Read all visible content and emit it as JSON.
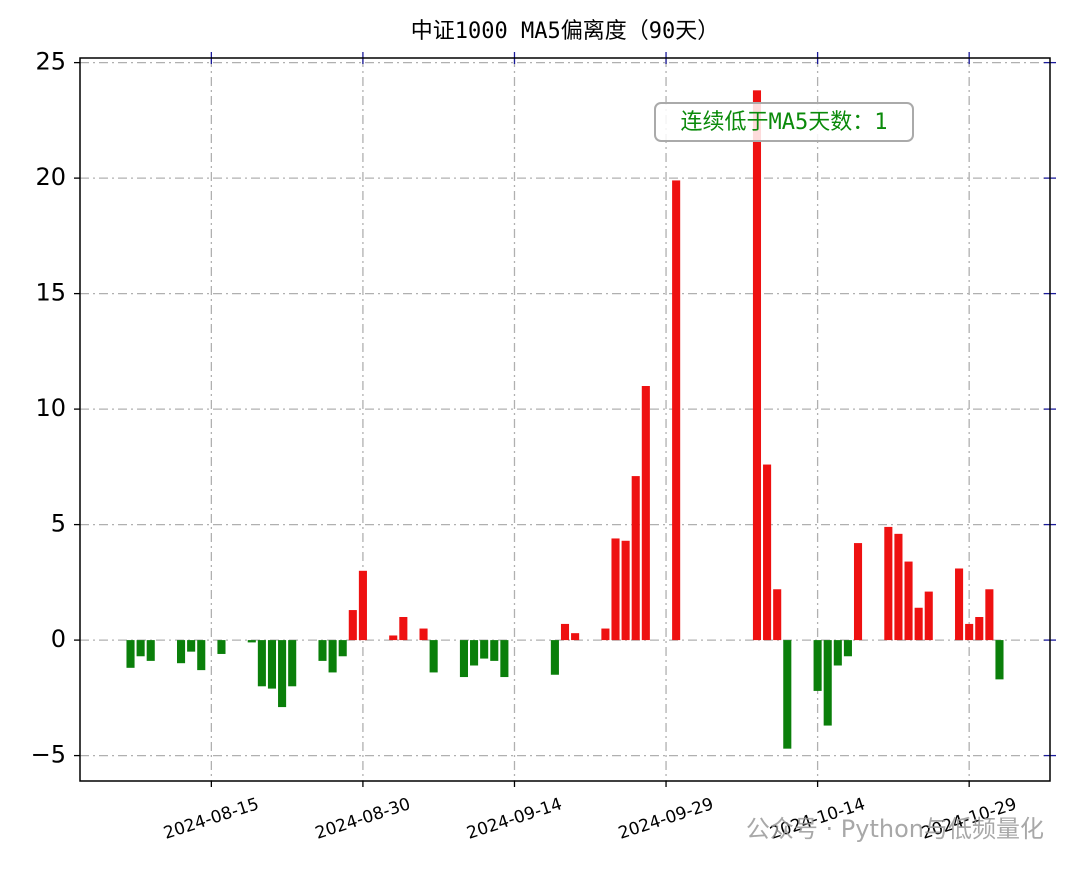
{
  "chart_data": {
    "type": "bar",
    "title": "中证1000 MA5偏离度（90天）",
    "annotation": "连续低于MA5天数：1",
    "watermark": "公众号 · Python与低频量化",
    "x": [
      "2024-08-07",
      "2024-08-08",
      "2024-08-09",
      "2024-08-12",
      "2024-08-13",
      "2024-08-14",
      "2024-08-16",
      "2024-08-19",
      "2024-08-20",
      "2024-08-21",
      "2024-08-22",
      "2024-08-23",
      "2024-08-26",
      "2024-08-27",
      "2024-08-28",
      "2024-08-29",
      "2024-08-30",
      "2024-09-02",
      "2024-09-03",
      "2024-09-05",
      "2024-09-06",
      "2024-09-09",
      "2024-09-10",
      "2024-09-11",
      "2024-09-12",
      "2024-09-13",
      "2024-09-18",
      "2024-09-19",
      "2024-09-20",
      "2024-09-23",
      "2024-09-24",
      "2024-09-25",
      "2024-09-26",
      "2024-09-27",
      "2024-09-30",
      "2024-10-08",
      "2024-10-09",
      "2024-10-10",
      "2024-10-11",
      "2024-10-14",
      "2024-10-15",
      "2024-10-16",
      "2024-10-17",
      "2024-10-18",
      "2024-10-21",
      "2024-10-22",
      "2024-10-23",
      "2024-10-24",
      "2024-10-25",
      "2024-10-28",
      "2024-10-29",
      "2024-10-30",
      "2024-10-31",
      "2024-11-01"
    ],
    "values": [
      -1.2,
      -0.7,
      -0.9,
      -1.0,
      -0.5,
      -1.3,
      -0.6,
      -0.1,
      -2.0,
      -2.1,
      -2.9,
      -2.0,
      -0.9,
      -1.4,
      -0.7,
      1.3,
      3.0,
      0.2,
      1.0,
      0.5,
      -1.4,
      -1.6,
      -1.1,
      -0.8,
      -0.9,
      -1.6,
      -1.5,
      0.7,
      0.3,
      0.5,
      4.4,
      4.3,
      7.1,
      11.0,
      19.9,
      23.8,
      7.6,
      2.2,
      -4.7,
      -2.2,
      -3.7,
      -1.1,
      -0.7,
      4.2,
      4.9,
      4.6,
      3.4,
      1.4,
      2.1,
      3.1,
      0.7,
      1.0,
      2.2,
      -1.7
    ],
    "color_positive": "#ee1111",
    "color_negative": "#0a7f0a",
    "xlim": [
      "2024-08-02",
      "2024-11-06"
    ],
    "xticks": [
      "2024-08-15",
      "2024-08-30",
      "2024-09-14",
      "2024-09-29",
      "2024-10-14",
      "2024-10-29"
    ],
    "ylim": [
      -6.1,
      25.2
    ],
    "yticks": [
      {
        "value": -5,
        "label": "−5"
      },
      0,
      5,
      10,
      15,
      20,
      25
    ],
    "grid": true
  }
}
